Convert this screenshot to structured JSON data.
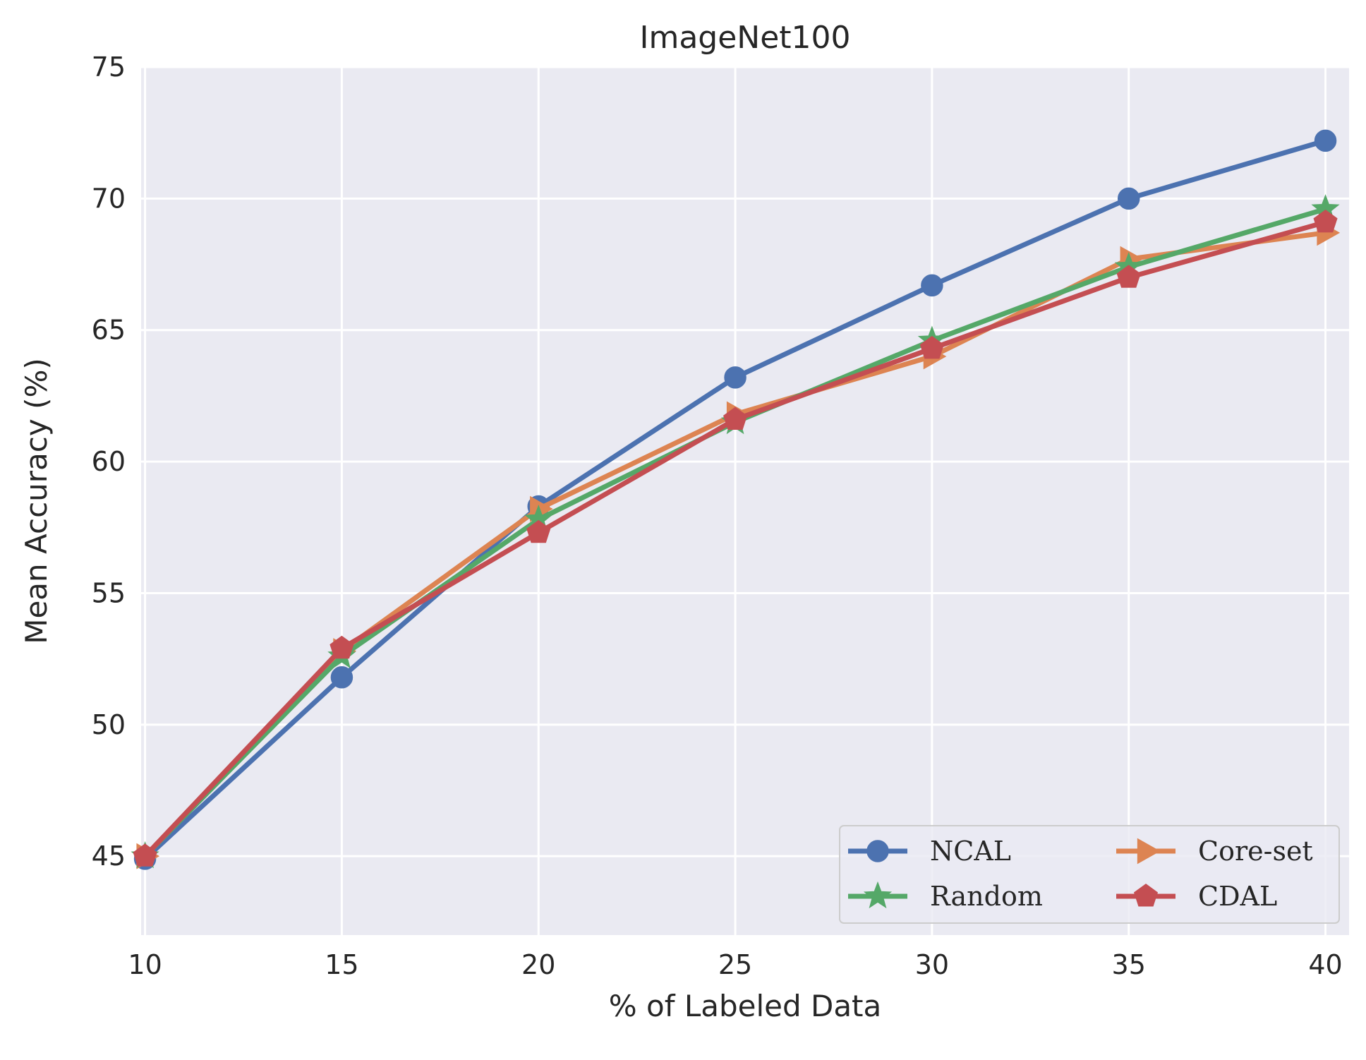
{
  "chart_data": {
    "type": "line",
    "title": "ImageNet100",
    "xlabel": "% of Labeled Data",
    "ylabel": "Mean Accuracy (%)",
    "x": [
      10,
      15,
      20,
      25,
      30,
      35,
      40
    ],
    "xticks": [
      "10",
      "15",
      "20",
      "25",
      "30",
      "35",
      "40"
    ],
    "yticks": [
      "45",
      "50",
      "55",
      "60",
      "65",
      "70",
      "75"
    ],
    "xlim": [
      9.9,
      40.6
    ],
    "ylim": [
      42,
      75
    ],
    "grid": true,
    "legend_position": "lower-right",
    "legend_columns": 2,
    "series": [
      {
        "name": "NCAL",
        "color": "#4c72b0",
        "marker": "circle",
        "values": [
          44.9,
          51.8,
          58.3,
          63.2,
          66.7,
          70.0,
          72.2
        ]
      },
      {
        "name": "Core-set",
        "color": "#dd8452",
        "marker": "triangle-right",
        "values": [
          45.0,
          52.8,
          58.2,
          61.8,
          64.0,
          67.7,
          68.7
        ]
      },
      {
        "name": "Random",
        "color": "#55a868",
        "marker": "star",
        "values": [
          45.0,
          52.6,
          57.8,
          61.5,
          64.6,
          67.4,
          69.6
        ]
      },
      {
        "name": "CDAL",
        "color": "#c44e52",
        "marker": "pentagon",
        "values": [
          45.0,
          52.9,
          57.3,
          61.6,
          64.3,
          67.0,
          69.1
        ]
      }
    ]
  }
}
